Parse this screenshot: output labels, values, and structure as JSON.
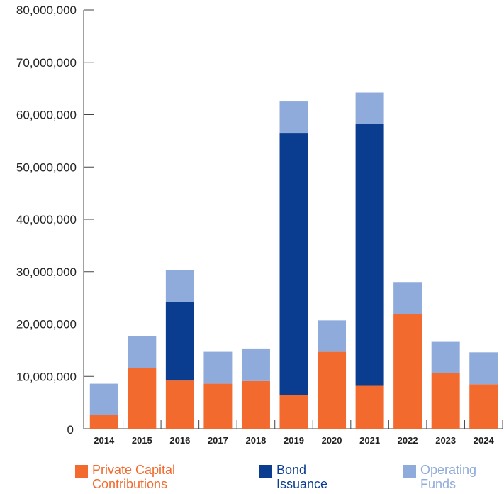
{
  "chart_data": {
    "type": "bar",
    "stacked": true,
    "categories": [
      "2014",
      "2015",
      "2016",
      "2017",
      "2018",
      "2019",
      "2020",
      "2021",
      "2022",
      "2023",
      "2024"
    ],
    "series": [
      {
        "name": "Private Capital Contributions",
        "color": "#f26a2e",
        "values": [
          2600000,
          11600000,
          9200000,
          8600000,
          9100000,
          6400000,
          14700000,
          8200000,
          21900000,
          10600000,
          8500000
        ]
      },
      {
        "name": "Bond Issuance",
        "color": "#0a3d8f",
        "values": [
          0,
          0,
          15000000,
          0,
          0,
          50000000,
          0,
          50000000,
          0,
          0,
          0
        ]
      },
      {
        "name": "Operating Funds",
        "color": "#8fabdb",
        "values": [
          6000000,
          6100000,
          6100000,
          6100000,
          6100000,
          6100000,
          6000000,
          6000000,
          6000000,
          6000000,
          6100000
        ]
      }
    ],
    "ylim": [
      0,
      80000000
    ],
    "yticks": [
      0,
      10000000,
      20000000,
      30000000,
      40000000,
      50000000,
      60000000,
      70000000,
      80000000
    ],
    "ytick_labels": [
      "0",
      "10,000,000",
      "20,000,000",
      "30,000,000",
      "40,000,000",
      "50,000,000",
      "60,000,000",
      "70,000,000",
      "80,000,000"
    ],
    "grid": false,
    "legend_position": "bottom",
    "legend": {
      "private": {
        "line1": "Private Capital",
        "line2": "Contributions",
        "color": "#f26a2e"
      },
      "bond": {
        "line1": "Bond",
        "line2": "Issuance",
        "color": "#0a3d8f"
      },
      "operating": {
        "line1": "Operating",
        "line2": "Funds",
        "color": "#8fabdb"
      }
    }
  }
}
